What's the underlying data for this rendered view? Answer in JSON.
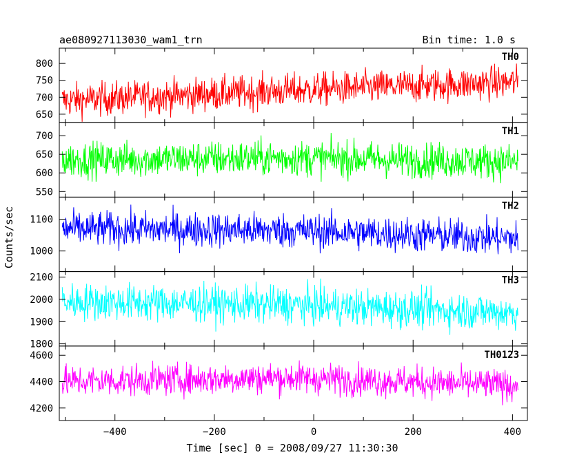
{
  "header": {
    "title": "ae080927113030_wam1_trn",
    "bin_time": "Bin time: 1.0 s"
  },
  "chart_data": {
    "type": "line",
    "xlabel": "Time [sec] 0 = 2008/09/27 11:30:30",
    "ylabel": "Counts/sec",
    "xlim": [
      -512,
      430
    ],
    "x_range": [
      -506,
      411
    ],
    "xticks": [
      -400,
      -200,
      0,
      200,
      400
    ],
    "xtick_labels": [
      "−400",
      "−200",
      "0",
      "200",
      "400"
    ],
    "grid": false,
    "panels": [
      {
        "name": "TH0",
        "color": "#ff0000",
        "ylim": [
          625,
          845
        ],
        "yticks": [
          650,
          700,
          750,
          800
        ],
        "trend_start": 690,
        "trend_mid": 720,
        "trend_end": 745,
        "noise": 25
      },
      {
        "name": "TH1",
        "color": "#00ff00",
        "ylim": [
          535,
          735
        ],
        "yticks": [
          550,
          600,
          650,
          700
        ],
        "trend_start": 635,
        "trend_mid": 640,
        "trend_end": 630,
        "noise": 24
      },
      {
        "name": "TH2",
        "color": "#0000ff",
        "ylim": [
          935,
          1170
        ],
        "yticks": [
          1000,
          1100
        ],
        "trend_start": 1070,
        "trend_mid": 1065,
        "trend_end": 1040,
        "noise": 28
      },
      {
        "name": "TH3",
        "color": "#00ffff",
        "ylim": [
          1790,
          2125
        ],
        "yticks": [
          1800,
          1900,
          2000,
          2100
        ],
        "trend_start": 1990,
        "trend_mid": 1975,
        "trend_end": 1940,
        "noise": 42
      },
      {
        "name": "TH0123",
        "color": "#ff00ff",
        "ylim": [
          4105,
          4670
        ],
        "yticks": [
          4200,
          4400,
          4600
        ],
        "trend_start": 4400,
        "trend_mid": 4430,
        "trend_end": 4370,
        "noise": 60
      }
    ]
  }
}
